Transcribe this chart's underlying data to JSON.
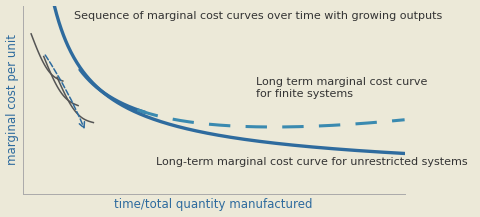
{
  "background_color": "#ece9d8",
  "plot_bg_color": "#ece9d8",
  "main_curve_color": "#2e6b9e",
  "dashed_curve_color": "#3a8ab0",
  "small_curve_color": "#555555",
  "arrow_color": "#2e6b9e",
  "xlabel": "time/total quantity manufactured",
  "ylabel": "marginal cost per unit",
  "xlabel_color": "#2e6b9e",
  "ylabel_color": "#2e6b9e",
  "axis_label_fontsize": 8.5,
  "annotation_fontsize": 8,
  "annotation_color": "#333333",
  "annotation1": "Sequence of marginal cost curves over time with growing outputs",
  "annotation2": "Long term marginal cost curve\nfor finite systems",
  "annotation3": "Long-term marginal cost curve for unrestricted systems"
}
